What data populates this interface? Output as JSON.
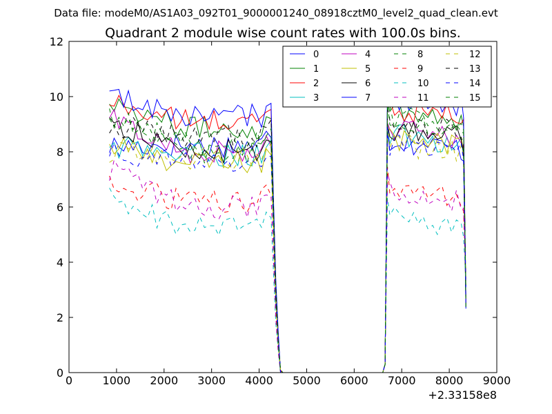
{
  "chart_data": {
    "type": "line",
    "suptitle": "Data file: modeM0/AS1A03_092T01_9000001240_08918cztM0_level2_quad_clean.evt",
    "title": "Quadrant 2 module wise count rates with 100.0s bins.",
    "xlabel": "",
    "ylabel": "",
    "x_offset_label": "+2.33158e8",
    "xlim": [
      0,
      9000
    ],
    "ylim": [
      0,
      12
    ],
    "xticks": [
      0,
      1000,
      2000,
      3000,
      4000,
      5000,
      6000,
      7000,
      8000,
      9000
    ],
    "yticks": [
      0,
      2,
      4,
      6,
      8,
      10,
      12
    ],
    "x_segments": {
      "seg1": [
        850,
        4250,
        100
      ],
      "fall": [
        4300,
        4350,
        4400,
        4450
      ],
      "gap": [
        4500,
        6600
      ],
      "rise": [
        6650,
        6700
      ],
      "seg2": [
        6750,
        8250,
        100
      ],
      "tail": [
        8300,
        8350
      ]
    },
    "legend_position": "top-right",
    "series": [
      {
        "name": "0",
        "color": "#0000ff",
        "dash": "solid",
        "base": 8.25,
        "start": 8.2,
        "seg2": 8.1
      },
      {
        "name": "1",
        "color": "#008000",
        "dash": "solid",
        "base": 8.85,
        "start": 9.9,
        "seg2": 9.2
      },
      {
        "name": "2",
        "color": "#ff0000",
        "dash": "solid",
        "base": 9.1,
        "start": 9.8,
        "seg2": 9.3
      },
      {
        "name": "3",
        "color": "#00bfbf",
        "dash": "solid",
        "base": 7.9,
        "start": 8.2,
        "seg2": 8.3
      },
      {
        "name": "4",
        "color": "#bf00bf",
        "dash": "solid",
        "base": 8.0,
        "start": 9.2,
        "seg2": 8.5
      },
      {
        "name": "5",
        "color": "#bfbf00",
        "dash": "solid",
        "base": 7.6,
        "start": 8.2,
        "seg2": 8.2
      },
      {
        "name": "6",
        "color": "#000000",
        "dash": "solid",
        "base": 8.0,
        "start": 9.1,
        "seg2": 8.5
      },
      {
        "name": "7",
        "color": "#0000ff",
        "dash": "solid",
        "base": 9.3,
        "start": 10.0,
        "seg2": 9.6
      },
      {
        "name": "8",
        "color": "#008000",
        "dash": "dashed",
        "base": 8.3,
        "start": 9.3,
        "seg2": 9.0
      },
      {
        "name": "9",
        "color": "#ff0000",
        "dash": "dashed",
        "base": 6.2,
        "start": 6.8,
        "seg2": 6.4
      },
      {
        "name": "10",
        "color": "#00bfbf",
        "dash": "dashed",
        "base": 5.3,
        "start": 6.3,
        "seg2": 5.3
      },
      {
        "name": "11",
        "color": "#bf00bf",
        "dash": "dashed",
        "base": 6.0,
        "start": 7.4,
        "seg2": 6.2
      },
      {
        "name": "12",
        "color": "#bfbf00",
        "dash": "dashed",
        "base": 7.8,
        "start": 8.0,
        "seg2": 8.0
      },
      {
        "name": "13",
        "color": "#000000",
        "dash": "dashed",
        "base": 8.6,
        "start": 9.0,
        "seg2": 8.7
      },
      {
        "name": "14",
        "color": "#0000ff",
        "dash": "dashed",
        "base": 7.6,
        "start": 8.1,
        "seg2": 8.0
      },
      {
        "name": "15",
        "color": "#008000",
        "dash": "dashed",
        "base": 8.0,
        "start": 9.4,
        "seg2": 8.8
      }
    ]
  }
}
